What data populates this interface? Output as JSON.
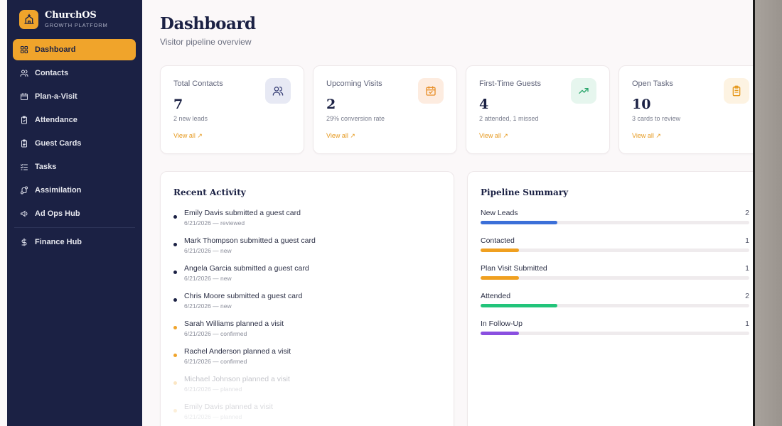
{
  "brand": {
    "name": "ChurchOS",
    "tagline": "GROWTH PLATFORM"
  },
  "sidebar": {
    "items": [
      {
        "label": "Dashboard",
        "icon": "grid-icon",
        "active": true
      },
      {
        "label": "Contacts",
        "icon": "users-icon"
      },
      {
        "label": "Plan-a-Visit",
        "icon": "calendar-icon"
      },
      {
        "label": "Attendance",
        "icon": "clipboard-check-icon"
      },
      {
        "label": "Guest Cards",
        "icon": "clipboard-list-icon"
      },
      {
        "label": "Tasks",
        "icon": "list-checks-icon"
      },
      {
        "label": "Assimilation",
        "icon": "route-icon"
      },
      {
        "label": "Ad Ops Hub",
        "icon": "megaphone-icon"
      },
      {
        "label": "Finance Hub",
        "icon": "dollar-icon"
      }
    ]
  },
  "header": {
    "title": "Dashboard",
    "subtitle": "Visitor pipeline overview"
  },
  "stats": [
    {
      "label": "Total Contacts",
      "value": "7",
      "note": "2 new leads",
      "link": "View all ↗",
      "icon": "users-icon",
      "icon_bg": "#e7e9f4",
      "icon_color": "#3b4278"
    },
    {
      "label": "Upcoming Visits",
      "value": "2",
      "note": "29% conversion rate",
      "link": "View all ↗",
      "icon": "calendar-check-icon",
      "icon_bg": "#fdece0",
      "icon_color": "#e8902a"
    },
    {
      "label": "First-Time Guests",
      "value": "4",
      "note": "2 attended, 1 missed",
      "link": "View all ↗",
      "icon": "trending-up-icon",
      "icon_bg": "#e6f6ee",
      "icon_color": "#2aa56b"
    },
    {
      "label": "Open Tasks",
      "value": "10",
      "note": "3 cards to review",
      "link": "View all ↗",
      "icon": "clipboard-icon",
      "icon_bg": "#fdf3e2",
      "icon_color": "#e69a20"
    }
  ],
  "activity": {
    "title": "Recent Activity",
    "items": [
      {
        "text": "Emily Davis submitted a guest card",
        "meta": "6/21/2026 — reviewed",
        "dot": "#1b2144"
      },
      {
        "text": "Mark Thompson submitted a guest card",
        "meta": "6/21/2026 — new",
        "dot": "#1b2144"
      },
      {
        "text": "Angela Garcia submitted a guest card",
        "meta": "6/21/2026 — new",
        "dot": "#1b2144"
      },
      {
        "text": "Chris Moore submitted a guest card",
        "meta": "6/21/2026 — new",
        "dot": "#1b2144"
      },
      {
        "text": "Sarah Williams planned a visit",
        "meta": "6/21/2026 — confirmed",
        "dot": "#f0a42b"
      },
      {
        "text": "Rachel Anderson planned a visit",
        "meta": "6/21/2026 — confirmed",
        "dot": "#f0a42b"
      },
      {
        "text": "Michael Johnson planned a visit",
        "meta": "6/21/2026 — planned",
        "dot": "#f0a42b"
      },
      {
        "text": "Emily Davis planned a visit",
        "meta": "6/21/2026 — planned",
        "dot": "#f0a42b"
      }
    ]
  },
  "pipeline": {
    "title": "Pipeline Summary",
    "stages": [
      {
        "label": "New Leads",
        "count": "2",
        "fill": 0.286,
        "color": "#3b6fd8"
      },
      {
        "label": "Contacted",
        "count": "1",
        "fill": 0.143,
        "color": "#f0a020"
      },
      {
        "label": "Plan Visit Submitted",
        "count": "1",
        "fill": 0.143,
        "color": "#f0a020"
      },
      {
        "label": "Attended",
        "count": "2",
        "fill": 0.286,
        "color": "#22c47a"
      },
      {
        "label": "In Follow-Up",
        "count": "1",
        "fill": 0.143,
        "color": "#8a4fe0"
      }
    ]
  }
}
